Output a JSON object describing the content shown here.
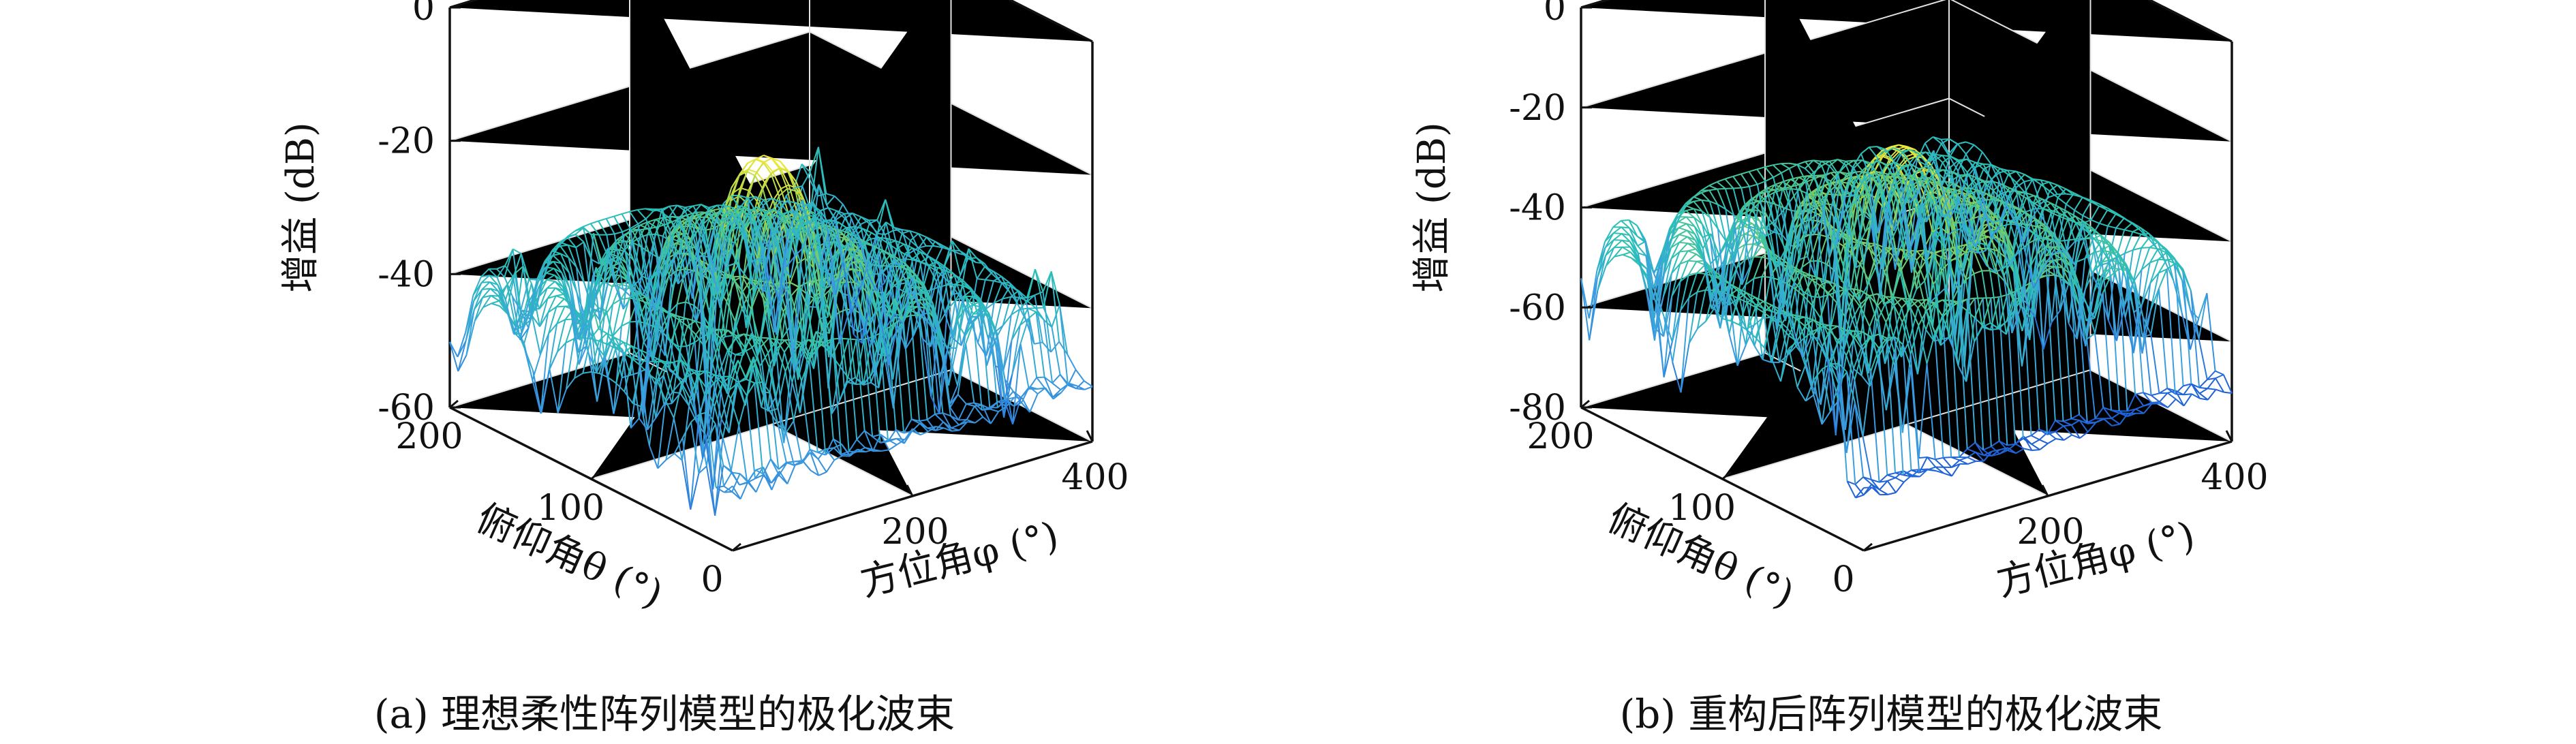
{
  "chart_data": [
    {
      "type": "surface",
      "caption": "(a) 理想柔性阵列模型的极化波束",
      "zlabel": "增益 (dB)",
      "xlabel": "方位角φ (°)",
      "ylabel": "俯仰角θ (°)",
      "x_ticks": [
        "200",
        "400"
      ],
      "y_ticks": [
        "0",
        "100",
        "200"
      ],
      "z_ticks": [
        "0",
        "-20",
        "-40",
        "-60"
      ],
      "xlim": [
        0,
        400
      ],
      "ylim": [
        0,
        200
      ],
      "zlim": [
        -60,
        0
      ],
      "main_lobe": {
        "azimuth_deg": 180,
        "elevation_deg": 90,
        "peak_db": -18
      },
      "sidelobe_floor_db": -50,
      "colormap": [
        "#1f5fd6",
        "#3c9fe0",
        "#2bbfb8",
        "#8fd14f",
        "#f4e93b"
      ],
      "grid": true
    },
    {
      "type": "surface",
      "caption": "(b) 重构后阵列模型的极化波束",
      "zlabel": "增益 (dB)",
      "xlabel": "方位角φ (°)",
      "ylabel": "俯仰角θ (°)",
      "x_ticks": [
        "200",
        "400"
      ],
      "y_ticks": [
        "0",
        "100",
        "200"
      ],
      "z_ticks": [
        "0",
        "-20",
        "-40",
        "-60",
        "-80"
      ],
      "xlim": [
        0,
        400
      ],
      "ylim": [
        0,
        200
      ],
      "zlim": [
        -80,
        0
      ],
      "main_lobe": {
        "azimuth_deg": 180,
        "elevation_deg": 90,
        "peak_db": -22
      },
      "sidelobe_floor_db": -60,
      "colormap": [
        "#1f5fd6",
        "#3c9fe0",
        "#2bbfb8",
        "#8fd14f",
        "#f4e93b"
      ],
      "grid": true
    }
  ]
}
